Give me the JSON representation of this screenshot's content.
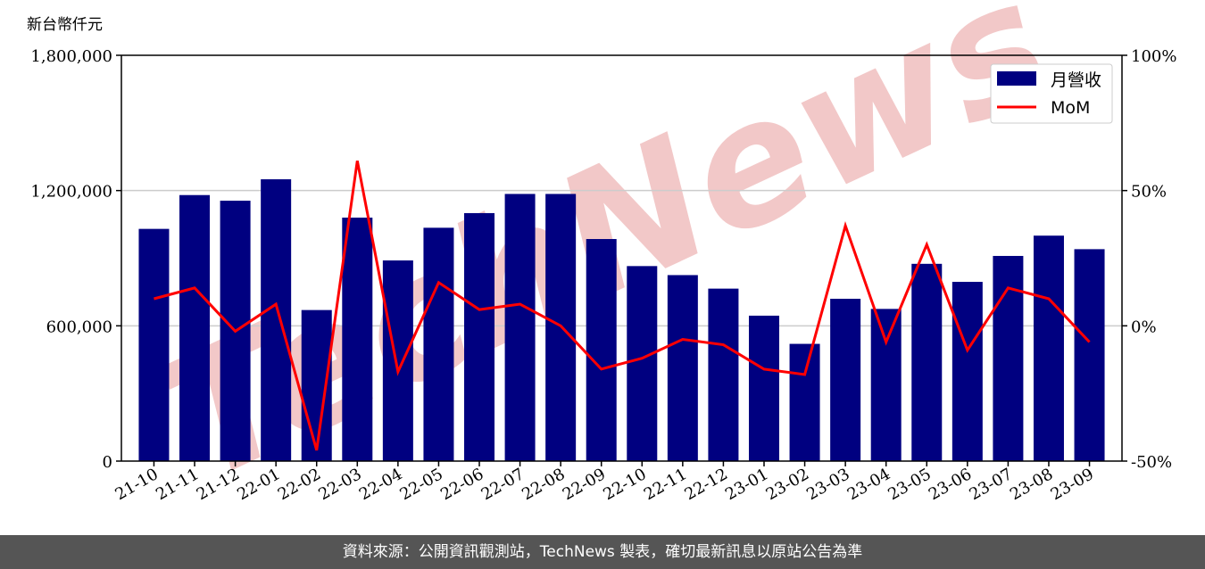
{
  "unit_label": "新台幣仟元",
  "footer": "資料來源：公開資訊觀測站，TechNews 製表，確切最新訊息以原站公告為準",
  "watermark": "TechNews",
  "colors": {
    "bar": "#000080",
    "line": "#ff0000",
    "grid": "#cccccc",
    "watermark": "#f2c8c8"
  },
  "chart_data": {
    "type": "bar",
    "categories": [
      "21-10",
      "21-11",
      "21-12",
      "22-01",
      "22-02",
      "22-03",
      "22-04",
      "22-05",
      "22-06",
      "22-07",
      "22-08",
      "22-09",
      "22-10",
      "22-11",
      "22-12",
      "23-01",
      "23-02",
      "23-03",
      "23-04",
      "23-05",
      "23-06",
      "23-07",
      "23-08",
      "23-09"
    ],
    "series": [
      {
        "name": "月營收",
        "type": "bar",
        "axis": "left",
        "values": [
          1030000,
          1180000,
          1155000,
          1250000,
          670000,
          1080000,
          890000,
          1035000,
          1100000,
          1185000,
          1185000,
          985000,
          865000,
          825000,
          765000,
          645000,
          520000,
          720000,
          675000,
          875000,
          795000,
          910000,
          1000000,
          940000
        ]
      },
      {
        "name": "MoM",
        "type": "line",
        "axis": "right",
        "values": [
          10,
          14,
          -2,
          8,
          -46,
          61,
          -17,
          16,
          6,
          8,
          0,
          -16,
          -12,
          -5,
          -7,
          -16,
          -18,
          37,
          -6,
          30,
          -9,
          14,
          10,
          -6
        ]
      }
    ],
    "y_left": {
      "lim": [
        0,
        1800000
      ],
      "ticks": [
        0,
        600000,
        1200000,
        1800000
      ],
      "tick_labels": [
        "0",
        "600,000",
        "1,200,000",
        "1,800,000"
      ]
    },
    "y_right": {
      "lim": [
        -50,
        100
      ],
      "ticks": [
        -50,
        0,
        50,
        100
      ],
      "tick_labels": [
        "-50%",
        "0%",
        "50%",
        "100%"
      ]
    },
    "grid": "horizontal",
    "legend": {
      "placement": "top-right",
      "entries": [
        "月營收",
        "MoM"
      ]
    }
  }
}
